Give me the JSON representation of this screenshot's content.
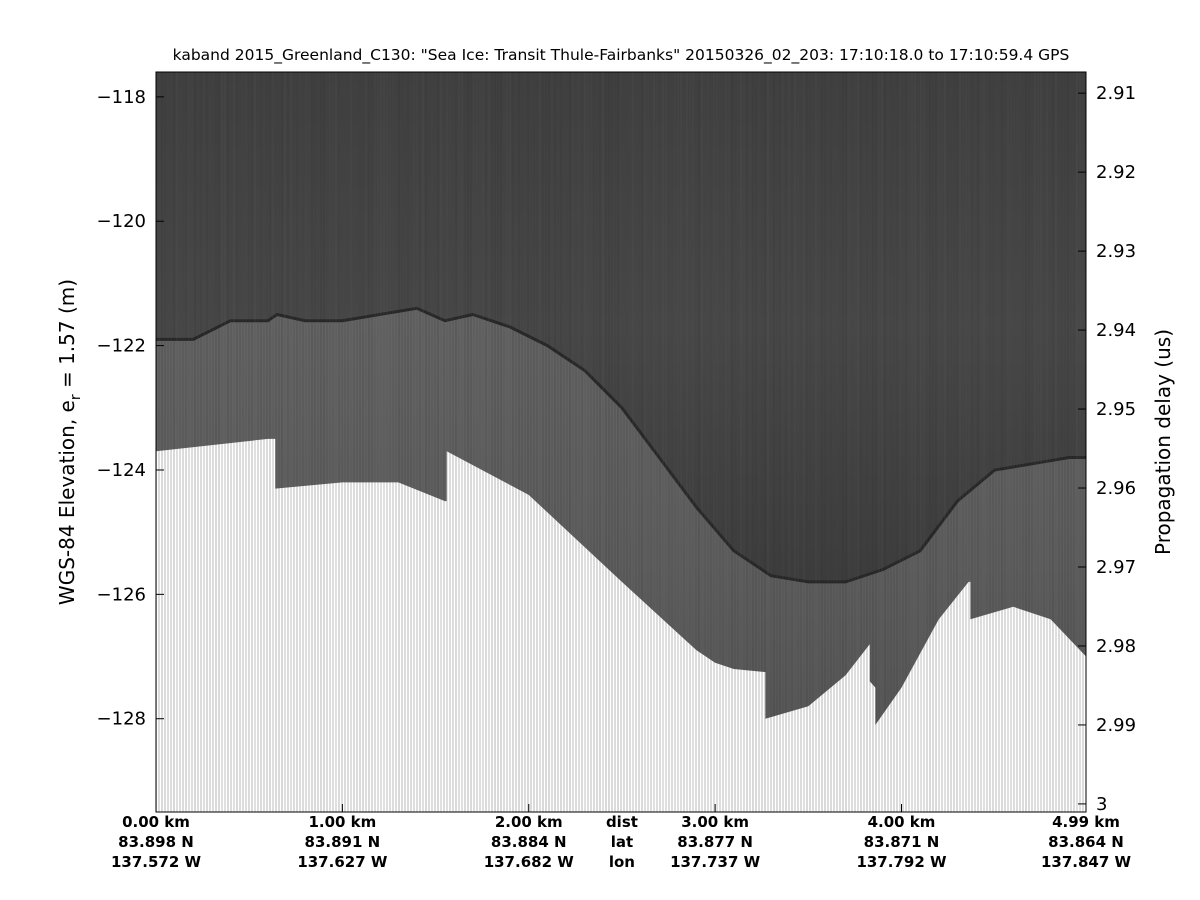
{
  "chart_data": {
    "type": "heatmap",
    "title": "kaband 2015_Greenland_C130: \"Sea Ice: Transit Thule-Fairbanks\"  20150326_02_203: 17:10:18.0 to 17:10:59.4 GPS",
    "ylabel_left_prefix": "WGS-84 Elevation, e",
    "ylabel_left_sub": "r",
    "ylabel_left_suffix": " = 1.57 (m)",
    "ylabel_right": "Propagation delay (us)",
    "colormap": "gray",
    "background_color": "#ffffff",
    "left_axis": {
      "ylim": [
        -129.5,
        -117.6
      ],
      "ticks": [
        -118,
        -120,
        -122,
        -124,
        -126,
        -128
      ],
      "tick_labels": [
        "−118",
        "−120",
        "−122",
        "−124",
        "−126",
        "−128"
      ]
    },
    "right_axis": {
      "ticks": [
        2.91,
        2.92,
        2.93,
        2.94,
        2.95,
        2.96,
        2.97,
        2.98,
        2.99,
        3
      ],
      "tick_labels": [
        "2.91",
        "2.92",
        "2.93",
        "2.94",
        "2.95",
        "2.96",
        "2.97",
        "2.98",
        "2.99",
        "3"
      ],
      "elevation_at_tick_0": -117.94,
      "elevation_per_tick": -1.27
    },
    "x_axis": {
      "xlim_km": [
        0,
        4.99
      ],
      "row_labels": [
        "dist",
        "lat",
        "lon"
      ],
      "ticks": [
        {
          "km": 0.0,
          "dist": "0.00 km",
          "lat": "83.898 N",
          "lon": "137.572 W"
        },
        {
          "km": 1.0,
          "dist": "1.00 km",
          "lat": "83.891 N",
          "lon": "137.627 W"
        },
        {
          "km": 2.0,
          "dist": "2.00 km",
          "lat": "83.884 N",
          "lon": "137.682 W"
        },
        {
          "km": 3.0,
          "dist": "3.00 km",
          "lat": "83.877 N",
          "lon": "137.737 W"
        },
        {
          "km": 4.0,
          "dist": "4.00 km",
          "lat": "83.871 N",
          "lon": "137.792 W"
        },
        {
          "km": 4.99,
          "dist": "4.99 km",
          "lat": "83.864 N",
          "lon": "137.847 W"
        }
      ]
    },
    "surface_elevation_m": {
      "x_km": [
        0.0,
        0.2,
        0.4,
        0.6,
        0.65,
        0.8,
        1.0,
        1.2,
        1.4,
        1.55,
        1.7,
        1.9,
        2.1,
        2.3,
        2.5,
        2.7,
        2.9,
        3.1,
        3.3,
        3.5,
        3.7,
        3.9,
        4.1,
        4.3,
        4.5,
        4.7,
        4.9,
        4.99
      ],
      "values": [
        -121.9,
        -121.9,
        -121.6,
        -121.6,
        -121.5,
        -121.6,
        -121.6,
        -121.5,
        -121.4,
        -121.6,
        -121.5,
        -121.7,
        -122.0,
        -122.4,
        -123.0,
        -123.8,
        -124.6,
        -125.3,
        -125.7,
        -125.8,
        -125.8,
        -125.6,
        -125.3,
        -124.5,
        -124.0,
        -123.9,
        -123.8,
        -123.8
      ]
    },
    "data_bottom_elevation_m": {
      "x_km": [
        0.0,
        0.6,
        0.64,
        0.64,
        1.0,
        1.3,
        1.55,
        1.56,
        1.56,
        2.0,
        2.5,
        2.9,
        3.0,
        3.1,
        3.27,
        3.27,
        3.5,
        3.7,
        3.83,
        3.83,
        3.86,
        3.86,
        4.0,
        4.2,
        4.36,
        4.37,
        4.37,
        4.6,
        4.8,
        4.99
      ],
      "values": [
        -123.7,
        -123.5,
        -123.5,
        -124.3,
        -124.2,
        -124.2,
        -124.5,
        -124.5,
        -123.7,
        -124.4,
        -125.8,
        -126.9,
        -127.1,
        -127.2,
        -127.25,
        -128.0,
        -127.8,
        -127.3,
        -126.8,
        -127.4,
        -127.5,
        -128.1,
        -127.5,
        -126.4,
        -125.8,
        -125.8,
        -126.4,
        -126.2,
        -126.4,
        -127.0
      ]
    }
  }
}
